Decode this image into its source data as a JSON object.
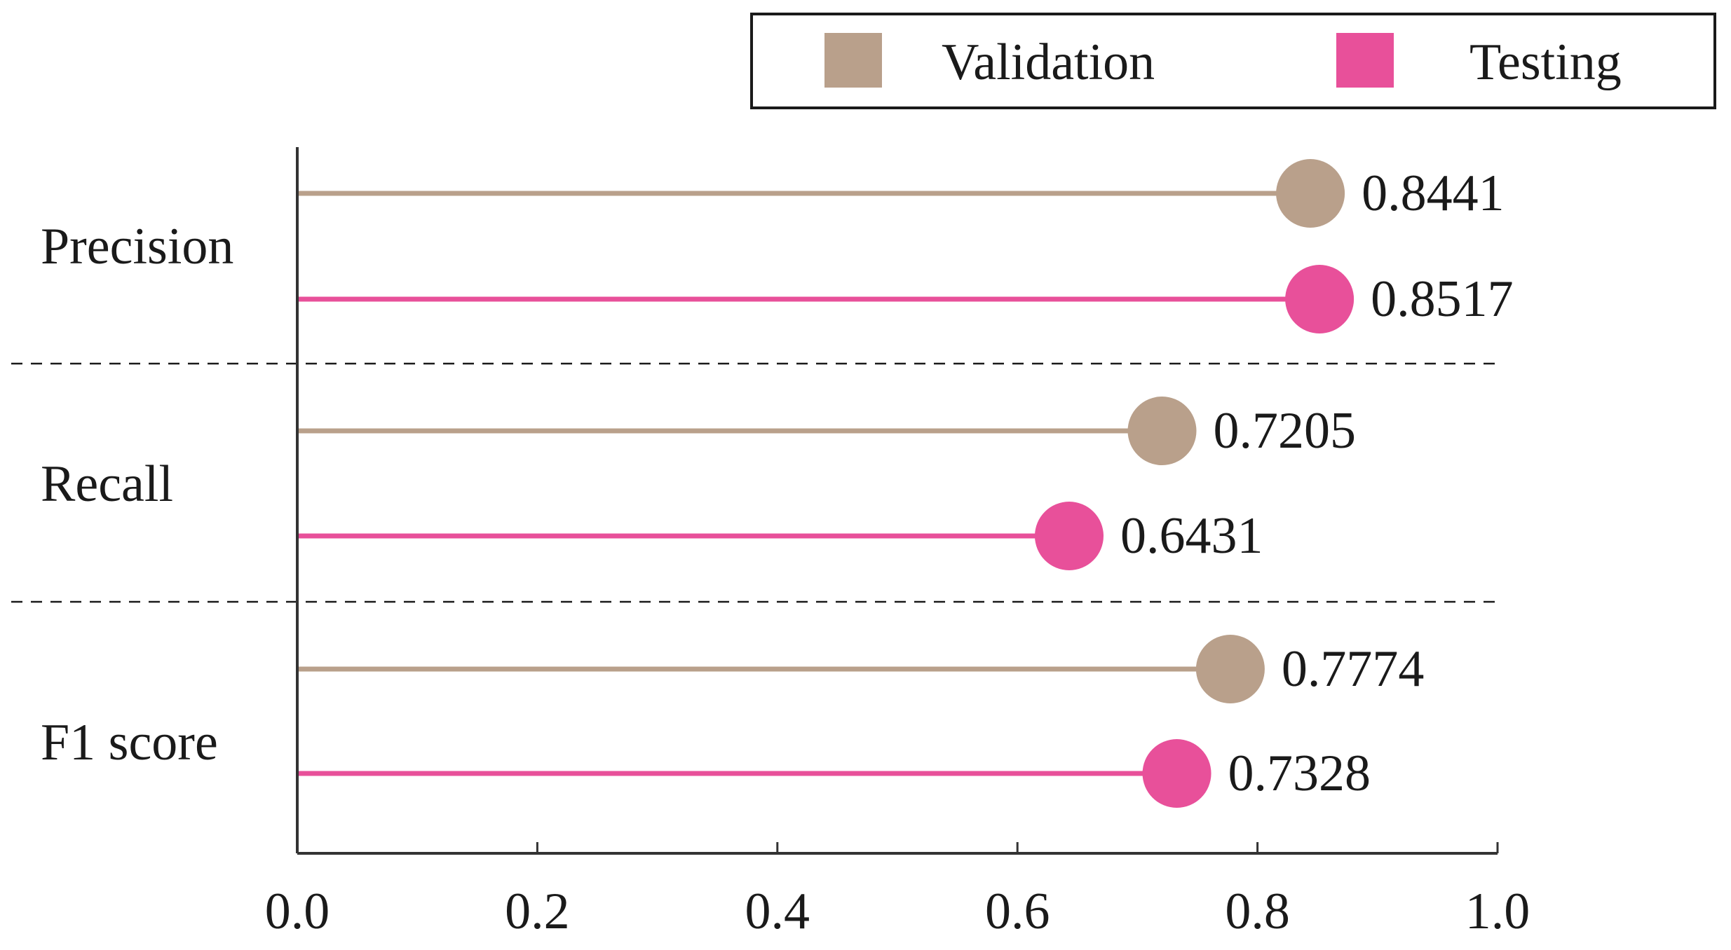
{
  "chart_data": {
    "type": "lollipop",
    "orientation": "horizontal",
    "categories": [
      "Precision",
      "Recall",
      "F1 score"
    ],
    "series": [
      {
        "name": "Validation",
        "color": "#b9a08b",
        "values": [
          0.8441,
          0.7205,
          0.7774
        ],
        "labels": [
          "0.8441",
          "0.7205",
          "0.7774"
        ]
      },
      {
        "name": "Testing",
        "color": "#e8509a",
        "values": [
          0.8517,
          0.6431,
          0.7328
        ],
        "labels": [
          "0.8517",
          "0.6431",
          "0.7328"
        ]
      }
    ],
    "xlim": [
      0,
      1
    ],
    "xticks": [
      0.0,
      0.2,
      0.4,
      0.6,
      0.8,
      1.0
    ],
    "xtick_labels": [
      "0.0",
      "0.2",
      "0.4",
      "0.6",
      "0.8",
      "1.0"
    ],
    "category_separators": "dashed",
    "legend": {
      "position": "top-right",
      "entries": [
        "Validation",
        "Testing"
      ]
    },
    "title": "",
    "xlabel": "",
    "ylabel": ""
  }
}
